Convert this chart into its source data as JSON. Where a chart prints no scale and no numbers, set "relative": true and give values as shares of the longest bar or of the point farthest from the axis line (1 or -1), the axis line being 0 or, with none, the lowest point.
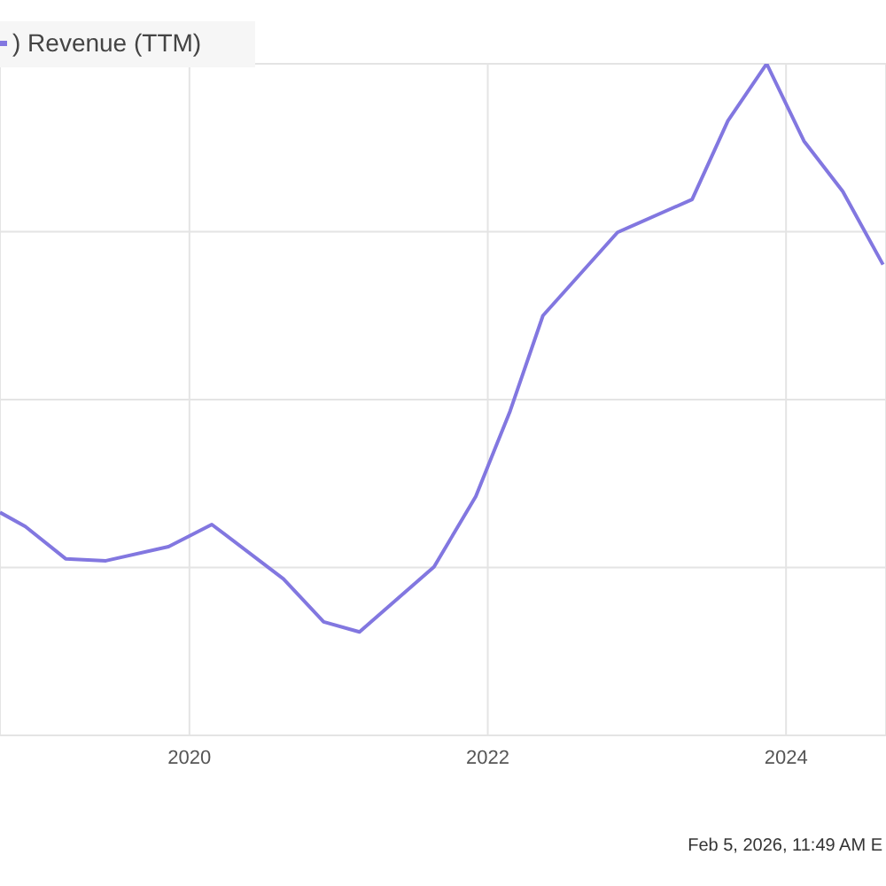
{
  "chart_data": {
    "type": "line",
    "relative": true,
    "x": [
      2018.73,
      2018.9,
      2019.17,
      2019.44,
      2019.86,
      2020.15,
      2020.63,
      2020.9,
      2021.14,
      2021.64,
      2021.92,
      2022.15,
      2022.37,
      2022.87,
      2023.37,
      2023.61,
      2023.87,
      2024.12,
      2024.38,
      2024.65
    ],
    "series": [
      {
        "name": ") Revenue (TTM)",
        "color": "#8277e0",
        "values": [
          0.332,
          0.311,
          0.263,
          0.26,
          0.281,
          0.314,
          0.233,
          0.169,
          0.154,
          0.251,
          0.356,
          0.483,
          0.625,
          0.749,
          0.798,
          0.915,
          1,
          0.885,
          0.81,
          0.701
        ]
      }
    ],
    "xlim": [
      2018.73,
      2024.67
    ],
    "xticks": [
      2020,
      2022,
      2024
    ],
    "grid": true,
    "legend": "top left",
    "marker": "none",
    "line_style": "solid",
    "annotations": [
      "Feb 5, 2026, 11:49 AM E"
    ]
  }
}
